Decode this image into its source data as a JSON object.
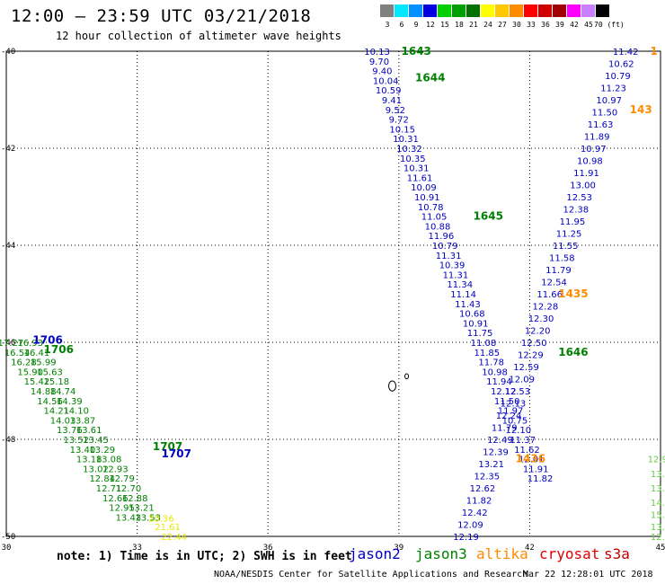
{
  "header": {
    "title": "12:00 – 23:59 UTC 03/21/2018",
    "subtitle": "12 hour collection of altimeter wave heights"
  },
  "legend": {
    "unit": "70 (ft)",
    "bins": [
      {
        "label": "3",
        "color": "#808080"
      },
      {
        "label": "6",
        "color": "#00e8ff"
      },
      {
        "label": "9",
        "color": "#0090ff"
      },
      {
        "label": "12",
        "color": "#0000e0"
      },
      {
        "label": "15",
        "color": "#00d000"
      },
      {
        "label": "18",
        "color": "#00a000"
      },
      {
        "label": "21",
        "color": "#007000"
      },
      {
        "label": "24",
        "color": "#ffff00"
      },
      {
        "label": "27",
        "color": "#ffc800"
      },
      {
        "label": "30",
        "color": "#ff8c00"
      },
      {
        "label": "33",
        "color": "#ff0000"
      },
      {
        "label": "36",
        "color": "#d00000"
      },
      {
        "label": "39",
        "color": "#a00000"
      },
      {
        "label": "42",
        "color": "#ff00ff"
      },
      {
        "label": "45",
        "color": "#c880ff"
      },
      {
        "label": "70",
        "color": "#000000"
      }
    ]
  },
  "map": {
    "lon_ticks": [
      "30",
      "33",
      "36",
      "39",
      "42",
      "45"
    ],
    "lat_ticks": [
      "-40",
      "-42",
      "-44",
      "-46",
      "-48",
      "-50"
    ],
    "colors": {
      "jason2": "#0000c0",
      "jason3": "#008000",
      "altika": "#ff8c00",
      "light_green": "#66cc44",
      "yellow": "#e8e800",
      "orange": "#ff8c00"
    },
    "tracks": [
      {
        "color": "jason2",
        "labels": [
          {
            "lon": 38.5,
            "lat": -40.0,
            "text": "10.13"
          },
          {
            "lon": 38.55,
            "lat": -40.2,
            "text": "9.70"
          },
          {
            "lon": 38.62,
            "lat": -40.4,
            "text": "9.40"
          },
          {
            "lon": 38.7,
            "lat": -40.6,
            "text": "10.04"
          },
          {
            "lon": 38.76,
            "lat": -40.8,
            "text": "10.59"
          },
          {
            "lon": 38.84,
            "lat": -41.0,
            "text": "9.41"
          },
          {
            "lon": 38.92,
            "lat": -41.2,
            "text": "9.52"
          },
          {
            "lon": 39.0,
            "lat": -41.4,
            "text": "9.72"
          },
          {
            "lon": 39.08,
            "lat": -41.6,
            "text": "10.15"
          },
          {
            "lon": 39.16,
            "lat": -41.8,
            "text": "10.31"
          },
          {
            "lon": 39.24,
            "lat": -42.0,
            "text": "10.32"
          },
          {
            "lon": 39.32,
            "lat": -42.2,
            "text": "10.35"
          },
          {
            "lon": 39.4,
            "lat": -42.4,
            "text": "10.31"
          },
          {
            "lon": 39.48,
            "lat": -42.6,
            "text": "11.61"
          },
          {
            "lon": 39.57,
            "lat": -42.8,
            "text": "10.09"
          },
          {
            "lon": 39.65,
            "lat": -43.0,
            "text": "10.91"
          },
          {
            "lon": 39.73,
            "lat": -43.2,
            "text": "10.78"
          },
          {
            "lon": 39.81,
            "lat": -43.4,
            "text": "11.05"
          },
          {
            "lon": 39.89,
            "lat": -43.6,
            "text": "10.88"
          },
          {
            "lon": 39.97,
            "lat": -43.8,
            "text": "11.96"
          },
          {
            "lon": 40.06,
            "lat": -44.0,
            "text": "10.79"
          },
          {
            "lon": 40.14,
            "lat": -44.2,
            "text": "11.31"
          },
          {
            "lon": 40.22,
            "lat": -44.4,
            "text": "10.39"
          },
          {
            "lon": 40.3,
            "lat": -44.6,
            "text": "11.31"
          },
          {
            "lon": 40.4,
            "lat": -44.8,
            "text": "11.34"
          },
          {
            "lon": 40.48,
            "lat": -45.0,
            "text": "11.14"
          },
          {
            "lon": 40.58,
            "lat": -45.2,
            "text": "11.43"
          },
          {
            "lon": 40.68,
            "lat": -45.4,
            "text": "10.68"
          },
          {
            "lon": 40.76,
            "lat": -45.6,
            "text": "10.91"
          },
          {
            "lon": 40.86,
            "lat": -45.8,
            "text": "11.75"
          },
          {
            "lon": 40.94,
            "lat": -46.0,
            "text": "11.08"
          },
          {
            "lon": 41.02,
            "lat": -46.2,
            "text": "11.85"
          },
          {
            "lon": 41.12,
            "lat": -46.4,
            "text": "11.78"
          },
          {
            "lon": 41.2,
            "lat": -46.6,
            "text": "10.98"
          },
          {
            "lon": 41.3,
            "lat": -46.8,
            "text": "11.94"
          },
          {
            "lon": 41.4,
            "lat": -47.0,
            "text": "12.12"
          },
          {
            "lon": 41.48,
            "lat": -47.2,
            "text": "11.50"
          },
          {
            "lon": 41.56,
            "lat": -47.4,
            "text": "11.97"
          },
          {
            "lon": 41.66,
            "lat": -47.6,
            "text": "10.75"
          },
          {
            "lon": 41.74,
            "lat": -47.8,
            "text": "12.10"
          },
          {
            "lon": 41.84,
            "lat": -48.0,
            "text": "11.37"
          },
          {
            "lon": 41.94,
            "lat": -48.2,
            "text": "11.62"
          },
          {
            "lon": 42.04,
            "lat": -48.4,
            "text": "12.01"
          },
          {
            "lon": 42.14,
            "lat": -48.6,
            "text": "11.91"
          },
          {
            "lon": 42.24,
            "lat": -48.8,
            "text": "11.82"
          }
        ]
      },
      {
        "color": "jason2",
        "labels": [
          {
            "lon": 44.2,
            "lat": -40.0,
            "text": "11.42"
          },
          {
            "lon": 44.1,
            "lat": -40.25,
            "text": "10.62"
          },
          {
            "lon": 44.02,
            "lat": -40.5,
            "text": "10.79"
          },
          {
            "lon": 43.92,
            "lat": -40.75,
            "text": "11.23"
          },
          {
            "lon": 43.82,
            "lat": -41.0,
            "text": "10.97"
          },
          {
            "lon": 43.72,
            "lat": -41.25,
            "text": "11.50"
          },
          {
            "lon": 43.62,
            "lat": -41.5,
            "text": "11.63"
          },
          {
            "lon": 43.54,
            "lat": -41.75,
            "text": "11.89"
          },
          {
            "lon": 43.46,
            "lat": -42.0,
            "text": "10.97"
          },
          {
            "lon": 43.38,
            "lat": -42.25,
            "text": "10.98"
          },
          {
            "lon": 43.3,
            "lat": -42.5,
            "text": "11.91"
          },
          {
            "lon": 43.22,
            "lat": -42.75,
            "text": "13.00"
          },
          {
            "lon": 43.14,
            "lat": -43.0,
            "text": "12.53"
          },
          {
            "lon": 43.06,
            "lat": -43.25,
            "text": "12.38"
          },
          {
            "lon": 42.98,
            "lat": -43.5,
            "text": "11.95"
          },
          {
            "lon": 42.9,
            "lat": -43.75,
            "text": "11.25"
          },
          {
            "lon": 42.82,
            "lat": -44.0,
            "text": "11.55"
          },
          {
            "lon": 42.74,
            "lat": -44.25,
            "text": "11.58"
          },
          {
            "lon": 42.66,
            "lat": -44.5,
            "text": "11.79"
          },
          {
            "lon": 42.56,
            "lat": -44.75,
            "text": "12.54"
          },
          {
            "lon": 42.46,
            "lat": -45.0,
            "text": "11.66"
          },
          {
            "lon": 42.36,
            "lat": -45.25,
            "text": "12.28"
          },
          {
            "lon": 42.26,
            "lat": -45.5,
            "text": "12.30"
          },
          {
            "lon": 42.18,
            "lat": -45.75,
            "text": "12.20"
          },
          {
            "lon": 42.1,
            "lat": -46.0,
            "text": "12.50"
          },
          {
            "lon": 42.02,
            "lat": -46.25,
            "text": "12.29"
          },
          {
            "lon": 41.92,
            "lat": -46.5,
            "text": "12.59"
          },
          {
            "lon": 41.82,
            "lat": -46.75,
            "text": "12.09"
          },
          {
            "lon": 41.72,
            "lat": -47.0,
            "text": "12.53"
          },
          {
            "lon": 41.62,
            "lat": -47.25,
            "text": "12.13"
          },
          {
            "lon": 41.52,
            "lat": -47.5,
            "text": "12.24"
          },
          {
            "lon": 41.42,
            "lat": -47.75,
            "text": "11.79"
          },
          {
            "lon": 41.32,
            "lat": -48.0,
            "text": "12.49"
          },
          {
            "lon": 41.22,
            "lat": -48.25,
            "text": "12.39"
          },
          {
            "lon": 41.12,
            "lat": -48.5,
            "text": "13.21"
          },
          {
            "lon": 41.02,
            "lat": -48.75,
            "text": "12.35"
          },
          {
            "lon": 40.92,
            "lat": -49.0,
            "text": "12.62"
          },
          {
            "lon": 40.84,
            "lat": -49.25,
            "text": "11.82"
          },
          {
            "lon": 40.74,
            "lat": -49.5,
            "text": "12.42"
          },
          {
            "lon": 40.64,
            "lat": -49.75,
            "text": "12.09"
          },
          {
            "lon": 40.54,
            "lat": -50.0,
            "text": "12.19"
          }
        ]
      },
      {
        "color": "light_green",
        "labels": [
          {
            "lon": 45.0,
            "lat": -48.4,
            "text": "12.90"
          },
          {
            "lon": 45.0,
            "lat": -48.7,
            "text": "13.0"
          },
          {
            "lon": 45.0,
            "lat": -49.0,
            "text": "13.9"
          },
          {
            "lon": 45.0,
            "lat": -49.3,
            "text": "14.8"
          },
          {
            "lon": 45.0,
            "lat": -49.55,
            "text": "15.1"
          },
          {
            "lon": 45.0,
            "lat": -49.8,
            "text": "13.5"
          },
          {
            "lon": 45.0,
            "lat": -50.0,
            "text": "12.8"
          }
        ]
      },
      {
        "color": "jason3",
        "labels": [
          {
            "lon": 30.1,
            "lat": -46.0,
            "text": "17.27"
          },
          {
            "lon": 30.25,
            "lat": -46.2,
            "text": "16.54"
          },
          {
            "lon": 30.4,
            "lat": -46.4,
            "text": "16.28"
          },
          {
            "lon": 30.55,
            "lat": -46.6,
            "text": "15.90"
          },
          {
            "lon": 30.7,
            "lat": -46.8,
            "text": "15.42"
          },
          {
            "lon": 30.85,
            "lat": -47.0,
            "text": "14.88"
          },
          {
            "lon": 31.0,
            "lat": -47.2,
            "text": "14.56"
          },
          {
            "lon": 31.15,
            "lat": -47.4,
            "text": "14.21"
          },
          {
            "lon": 31.3,
            "lat": -47.6,
            "text": "14.03"
          },
          {
            "lon": 31.45,
            "lat": -47.8,
            "text": "13.76"
          },
          {
            "lon": 31.6,
            "lat": -48.0,
            "text": "13.52"
          },
          {
            "lon": 31.75,
            "lat": -48.2,
            "text": "13.40"
          },
          {
            "lon": 31.9,
            "lat": -48.4,
            "text": "13.18"
          },
          {
            "lon": 32.05,
            "lat": -48.6,
            "text": "13.02"
          },
          {
            "lon": 32.2,
            "lat": -48.8,
            "text": "12.84"
          },
          {
            "lon": 32.35,
            "lat": -49.0,
            "text": "12.71"
          },
          {
            "lon": 32.5,
            "lat": -49.2,
            "text": "12.66"
          },
          {
            "lon": 32.65,
            "lat": -49.4,
            "text": "12.95"
          },
          {
            "lon": 32.8,
            "lat": -49.6,
            "text": "13.43"
          }
        ]
      },
      {
        "color": "jason3",
        "labels": [
          {
            "lon": 30.55,
            "lat": -46.0,
            "text": "16.93"
          },
          {
            "lon": 30.7,
            "lat": -46.2,
            "text": "16.41"
          },
          {
            "lon": 30.85,
            "lat": -46.4,
            "text": "15.99"
          },
          {
            "lon": 31.0,
            "lat": -46.6,
            "text": "15.63"
          },
          {
            "lon": 31.15,
            "lat": -46.8,
            "text": "15.18"
          },
          {
            "lon": 31.3,
            "lat": -47.0,
            "text": "14.74"
          },
          {
            "lon": 31.45,
            "lat": -47.2,
            "text": "14.39"
          },
          {
            "lon": 31.6,
            "lat": -47.4,
            "text": "14.10"
          },
          {
            "lon": 31.75,
            "lat": -47.6,
            "text": "13.87"
          },
          {
            "lon": 31.9,
            "lat": -47.8,
            "text": "13.61"
          },
          {
            "lon": 32.05,
            "lat": -48.0,
            "text": "13.45"
          },
          {
            "lon": 32.2,
            "lat": -48.2,
            "text": "13.29"
          },
          {
            "lon": 32.35,
            "lat": -48.4,
            "text": "13.08"
          },
          {
            "lon": 32.5,
            "lat": -48.6,
            "text": "12.93"
          },
          {
            "lon": 32.65,
            "lat": -48.8,
            "text": "12.79"
          },
          {
            "lon": 32.8,
            "lat": -49.0,
            "text": "12.70"
          },
          {
            "lon": 32.95,
            "lat": -49.2,
            "text": "12.88"
          },
          {
            "lon": 33.1,
            "lat": -49.4,
            "text": "13.21"
          },
          {
            "lon": 33.25,
            "lat": -49.6,
            "text": "13.53"
          }
        ]
      },
      {
        "color": "yellow",
        "labels": [
          {
            "lon": 33.55,
            "lat": -49.62,
            "text": "20.36"
          },
          {
            "lon": 33.7,
            "lat": -49.8,
            "text": "21.61"
          },
          {
            "lon": 33.85,
            "lat": -50.0,
            "text": "22.44"
          }
        ]
      }
    ],
    "time_labels": [
      {
        "lon": 39.4,
        "lat": -40.0,
        "text": "1643",
        "color": "jason3"
      },
      {
        "lon": 39.72,
        "lat": -40.55,
        "text": "1644",
        "color": "jason3"
      },
      {
        "lon": 41.05,
        "lat": -43.4,
        "text": "1645",
        "color": "jason3"
      },
      {
        "lon": 43.0,
        "lat": -46.2,
        "text": "1646",
        "color": "jason3"
      },
      {
        "lon": 30.95,
        "lat": -45.95,
        "text": "1706",
        "color": "jason2"
      },
      {
        "lon": 31.2,
        "lat": -46.15,
        "text": "1706",
        "color": "jason3"
      },
      {
        "lon": 33.7,
        "lat": -48.15,
        "text": "1707",
        "color": "jason3"
      },
      {
        "lon": 33.9,
        "lat": -48.3,
        "text": "1707",
        "color": "jason2"
      },
      {
        "lon": 44.85,
        "lat": -40.0,
        "text": "1",
        "color": "altika"
      },
      {
        "lon": 44.55,
        "lat": -41.2,
        "text": "143",
        "color": "altika"
      },
      {
        "lon": 43.0,
        "lat": -45.0,
        "text": "1435",
        "color": "altika"
      },
      {
        "lon": 42.02,
        "lat": -48.4,
        "text": "1436",
        "color": "altika"
      }
    ],
    "islands": [
      {
        "lon": 38.85,
        "lat": -46.9
      },
      {
        "lon": 39.18,
        "lat": -46.7
      }
    ]
  },
  "footer": {
    "note": "note: 1) Time is in UTC; 2) SWH is in feet",
    "missions": [
      {
        "name": "jason2",
        "color": "#0000c0"
      },
      {
        "name": "jason3",
        "color": "#008000"
      },
      {
        "name": "altika",
        "color": "#ff8c00"
      },
      {
        "name": "cryosat",
        "color": "#e00000"
      },
      {
        "name": "s3a",
        "color": "#c00000"
      }
    ],
    "credit": "NOAA/NESDIS Center for Satellite Applications and Research",
    "timestamp": "Mar 22 12:28:01 UTC 2018"
  }
}
